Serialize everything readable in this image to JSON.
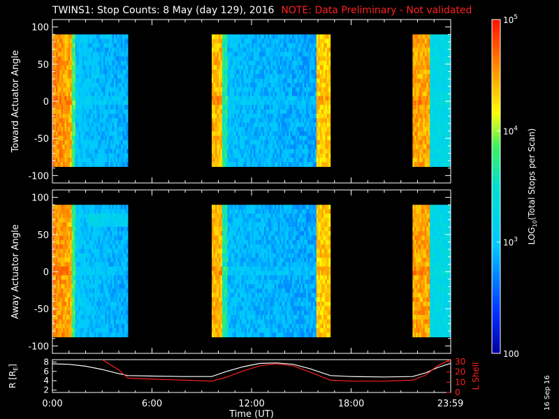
{
  "title": {
    "main": "TWINS1: Stop Counts:  8 May (day 129), 2016",
    "note": "NOTE: Data Preliminary - Not validated"
  },
  "stamp": "16 Sep 16",
  "colors": {
    "background": "#000000",
    "axis": "#ffffff",
    "note": "#ff2020",
    "r_curve": "#ffffff",
    "lshell_curve": "#ff2020"
  },
  "chart_data": [
    {
      "type": "heatmap",
      "panel": "top",
      "ylabel": "Toward Actuator Angle",
      "ylim": [
        -110,
        110
      ],
      "yticks": [
        100,
        50,
        0,
        -50,
        -100
      ],
      "ytick_labels": [
        "100",
        "50",
        "0",
        "-50",
        "-100"
      ],
      "xlim_hours": [
        0,
        24
      ],
      "angle_range": [
        -88,
        90
      ],
      "data_blocks": [
        {
          "start": 0.0,
          "end": 4.55
        },
        {
          "start": 9.6,
          "end": 16.75
        },
        {
          "start": 21.7,
          "end": 24.0
        }
      ]
    },
    {
      "type": "heatmap",
      "panel": "bottom",
      "ylabel": "Away Actuator Angle",
      "ylim": [
        -110,
        110
      ],
      "yticks": [
        100,
        50,
        0,
        -50,
        -100
      ],
      "ytick_labels": [
        "100",
        "50",
        "0",
        "-50",
        "-100"
      ],
      "xlim_hours": [
        0,
        24
      ],
      "angle_range": [
        -88,
        90
      ],
      "data_blocks": [
        {
          "start": 0.0,
          "end": 4.55
        },
        {
          "start": 9.6,
          "end": 16.75
        },
        {
          "start": 21.7,
          "end": 24.0
        }
      ]
    },
    {
      "type": "line",
      "panel": "ephemeris",
      "ylabel_left": "R [R",
      "ylabel_left_sub": "E",
      "ylabel_left_close": "]",
      "ylabel_right": "L Shell",
      "yticks_left": [
        "8",
        "6",
        "4",
        "2"
      ],
      "ylim_left": [
        1.5,
        8.5
      ],
      "yticks_right": [
        "30",
        "20",
        "10",
        "0"
      ],
      "ylim_right": [
        0,
        32
      ],
      "x_hours": [
        0.0,
        1.0,
        2.0,
        3.0,
        4.0,
        4.55,
        6.0,
        8.0,
        9.6,
        10.5,
        11.5,
        12.5,
        13.5,
        14.5,
        15.5,
        16.75,
        18.0,
        20.0,
        21.7,
        22.5,
        23.2,
        23.98
      ],
      "series": [
        {
          "name": "R",
          "values": [
            7.6,
            7.5,
            7.1,
            6.4,
            5.5,
            5.1,
            5.0,
            4.9,
            4.9,
            6.0,
            7.0,
            7.7,
            7.8,
            7.5,
            6.6,
            5.1,
            4.9,
            4.8,
            4.9,
            5.7,
            6.8,
            7.7
          ]
        },
        {
          "name": "L Shell",
          "values": [
            null,
            null,
            null,
            32,
            22,
            14,
            13,
            12,
            11,
            15,
            21,
            26,
            28,
            26,
            20,
            12,
            11,
            11,
            12,
            17,
            26,
            32
          ]
        }
      ]
    },
    {
      "type": "colorbar",
      "label": "LOG10(Total Stops per Scan)",
      "label_main": "LOG",
      "label_sub": "10",
      "label_rest": "(Total Stops per Scan)",
      "scale": "log",
      "range": [
        100,
        100000
      ],
      "tick_labels": [
        {
          "value": 100000,
          "base": "10",
          "exp": "5"
        },
        {
          "value": 10000,
          "base": "10",
          "exp": "4"
        },
        {
          "value": 1000,
          "base": "10",
          "exp": "3"
        },
        {
          "value": 100,
          "base": "100",
          "exp": ""
        }
      ]
    }
  ],
  "x_axis": {
    "label": "Time (UT)",
    "ticks": [
      {
        "hour": 0,
        "label": "0:00"
      },
      {
        "hour": 6,
        "label": "6:00"
      },
      {
        "hour": 12,
        "label": "12:00"
      },
      {
        "hour": 18,
        "label": "18:00"
      },
      {
        "hour": 23.98,
        "label": "23:59"
      }
    ]
  }
}
